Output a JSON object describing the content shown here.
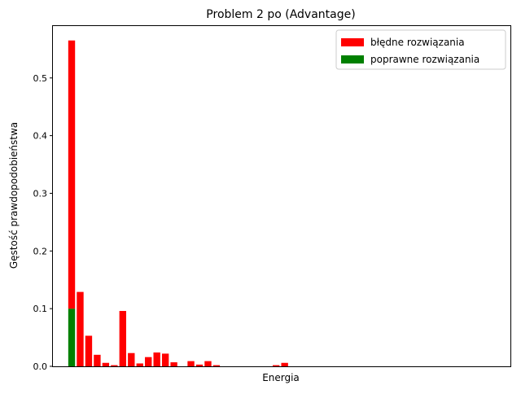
{
  "chart_data": {
    "type": "bar",
    "stacked": true,
    "title": "Problem 2 po (Advantage)",
    "xlabel": "Energia",
    "ylabel": "Gęstość prawdopodobieństwa",
    "ylim": [
      0,
      0.59
    ],
    "yticks": [
      0.0,
      0.1,
      0.2,
      0.3,
      0.4,
      0.5
    ],
    "ytick_labels": [
      "0.0",
      "0.1",
      "0.2",
      "0.3",
      "0.4",
      "0.5"
    ],
    "xticks_shown": false,
    "grid": false,
    "legend_position": "top-right",
    "x_positions": [
      0,
      1,
      2,
      3,
      4,
      5,
      6,
      7,
      8,
      9,
      10,
      11,
      12,
      13,
      14,
      15,
      16,
      17,
      18,
      19,
      20,
      21,
      22,
      23,
      24,
      25
    ],
    "series": [
      {
        "name": "poprawne rozwiązania",
        "color": "#008000",
        "values": [
          0.1,
          0,
          0,
          0,
          0,
          0,
          0,
          0,
          0,
          0,
          0,
          0,
          0,
          0,
          0,
          0,
          0,
          0,
          0,
          0,
          0,
          0,
          0,
          0,
          0,
          0
        ]
      },
      {
        "name": "błędne rozwiązania",
        "color": "#ff0000",
        "values": [
          0.465,
          0.129,
          0.053,
          0.02,
          0.006,
          0.002,
          0.096,
          0.023,
          0.005,
          0.016,
          0.024,
          0.022,
          0.007,
          0,
          0.009,
          0.003,
          0.009,
          0.002,
          0,
          0,
          0,
          0,
          0,
          0,
          0.002,
          0.006
        ]
      }
    ],
    "legend_order": [
      "błędne rozwiązania",
      "poprawne rozwiązania"
    ],
    "x_display_range": [
      -2.2,
      51.5
    ]
  }
}
